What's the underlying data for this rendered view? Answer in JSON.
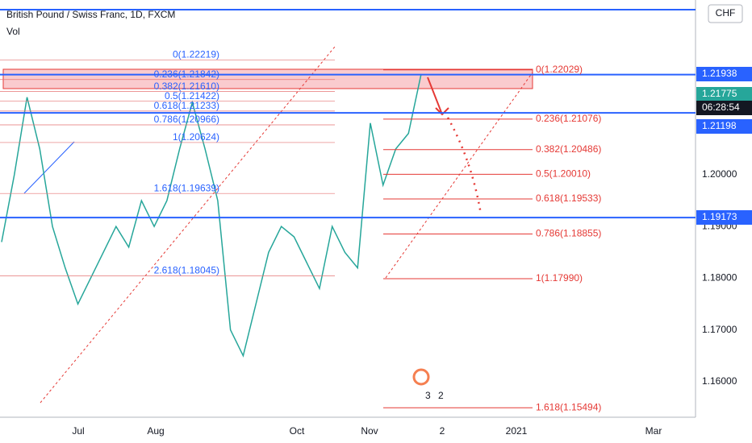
{
  "header": {
    "title": "British Pound / Swiss Franc, 1D, FXCM",
    "volume_label": "Vol",
    "currency": "CHF"
  },
  "price_axis": [
    "1.20000",
    "1.19000",
    "1.18000",
    "1.17000",
    "1.16000"
  ],
  "time_axis": [
    "Jul",
    "Aug",
    "Oct",
    "Nov",
    "2",
    "2021",
    "Mar"
  ],
  "price_tags": [
    {
      "text": "1.21938",
      "kind": "line"
    },
    {
      "text": "1.21775",
      "kind": "last"
    },
    {
      "text": "06:28:54",
      "kind": "timer"
    },
    {
      "text": "1.21198",
      "kind": "line"
    },
    {
      "text": "1.19173",
      "kind": "line"
    }
  ],
  "fib_left": [
    "0(1.22219)",
    "0.236(1.21842)",
    "0.382(1.21610)",
    "0.5(1.21422)",
    "0.618(1.21233)",
    "0.786(1.20966)",
    "1(1.20624)",
    "1.618(1.19639)",
    "2.618(1.18045)"
  ],
  "fib_right": [
    "0(1.22029)",
    "0.236(1.21076)",
    "0.382(1.20486)",
    "0.5(1.20010)",
    "0.618(1.19533)",
    "0.786(1.18855)",
    "1(1.17990)",
    "1.618(1.15494)"
  ],
  "price_path": [
    1.187,
    1.2,
    1.215,
    1.205,
    1.19,
    1.182,
    1.175,
    1.18,
    1.185,
    1.19,
    1.186,
    1.195,
    1.19,
    1.195,
    1.205,
    1.214,
    1.205,
    1.195,
    1.17,
    1.165,
    1.175,
    1.185,
    1.19,
    1.188,
    1.183,
    1.178,
    1.19,
    1.185,
    1.182,
    1.21,
    1.198,
    1.205,
    1.208,
    1.2195
  ],
  "badges": [
    "3",
    "2"
  ]
}
